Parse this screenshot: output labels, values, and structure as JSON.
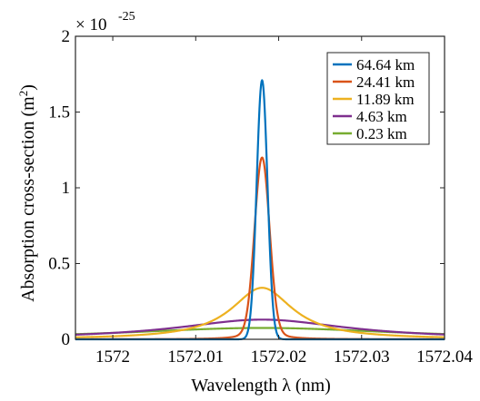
{
  "chart_data": {
    "type": "line",
    "xlabel": "Wavelength λ (nm)",
    "ylabel_main": "Absorption cross-section (m",
    "ylabel_sup": "2",
    "ylabel_close": ")",
    "exponent_prefix": "× 10",
    "exponent_power": "-25",
    "xlim": [
      1571.9955,
      1572.04
    ],
    "ylim": [
      0,
      2
    ],
    "xticks": [
      1572,
      1572.01,
      1572.02,
      1572.03,
      1572.04
    ],
    "xtick_labels": [
      "1572",
      "1572.01",
      "1572.02",
      "1572.03",
      "1572.04"
    ],
    "yticks": [
      0,
      0.5,
      1,
      1.5,
      2
    ],
    "ytick_labels": [
      "0",
      "0.5",
      "1",
      "1.5",
      "2"
    ],
    "grid": false,
    "legend_position": "top-right",
    "center_wavelength": 1572.018,
    "series": [
      {
        "name": "64.64 km",
        "color": "#0072BD",
        "profile": "gaussian",
        "peak": 1.71,
        "width": 0.00065
      },
      {
        "name": "24.41 km",
        "color": "#D95319",
        "profile": "voigt",
        "peak": 1.2,
        "width": 0.0009
      },
      {
        "name": "11.89 km",
        "color": "#EDB120",
        "profile": "lorentzian",
        "peak": 0.34,
        "width": 0.0045
      },
      {
        "name": "4.63 km",
        "color": "#7E2F8E",
        "profile": "lorentzian",
        "peak": 0.13,
        "width": 0.0125
      },
      {
        "name": "0.23 km",
        "color": "#77AC30",
        "profile": "lorentzian",
        "peak": 0.075,
        "width": 0.0205
      }
    ]
  }
}
